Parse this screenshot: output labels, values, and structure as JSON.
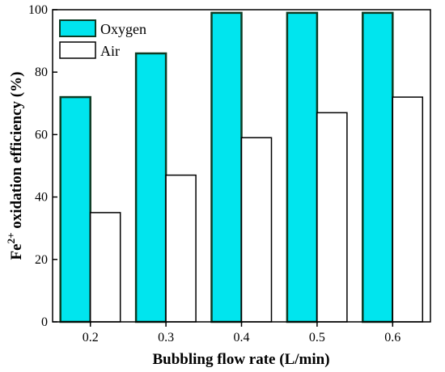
{
  "chart_data": {
    "type": "bar",
    "categories": [
      "0.2",
      "0.3",
      "0.4",
      "0.5",
      "0.6"
    ],
    "series": [
      {
        "name": "Oxygen",
        "values": [
          72,
          86,
          99,
          99,
          99
        ],
        "color": "#00e5ee"
      },
      {
        "name": "Air",
        "values": [
          35,
          47,
          59,
          67,
          72
        ],
        "color": "#ffffff"
      }
    ],
    "xlabel": "Bubbling flow rate (L/min)",
    "ylabel": {
      "prefix": "Fe",
      "superscript": "2+",
      "suffix": " oxidation efficiency (%)"
    },
    "ylim": [
      0,
      100
    ],
    "yticks": [
      "0",
      "20",
      "40",
      "60",
      "80",
      "100"
    ],
    "legend": "top-left",
    "bar_edge_color": "#000000",
    "oxygen_edge_color": "#0d3b24"
  }
}
